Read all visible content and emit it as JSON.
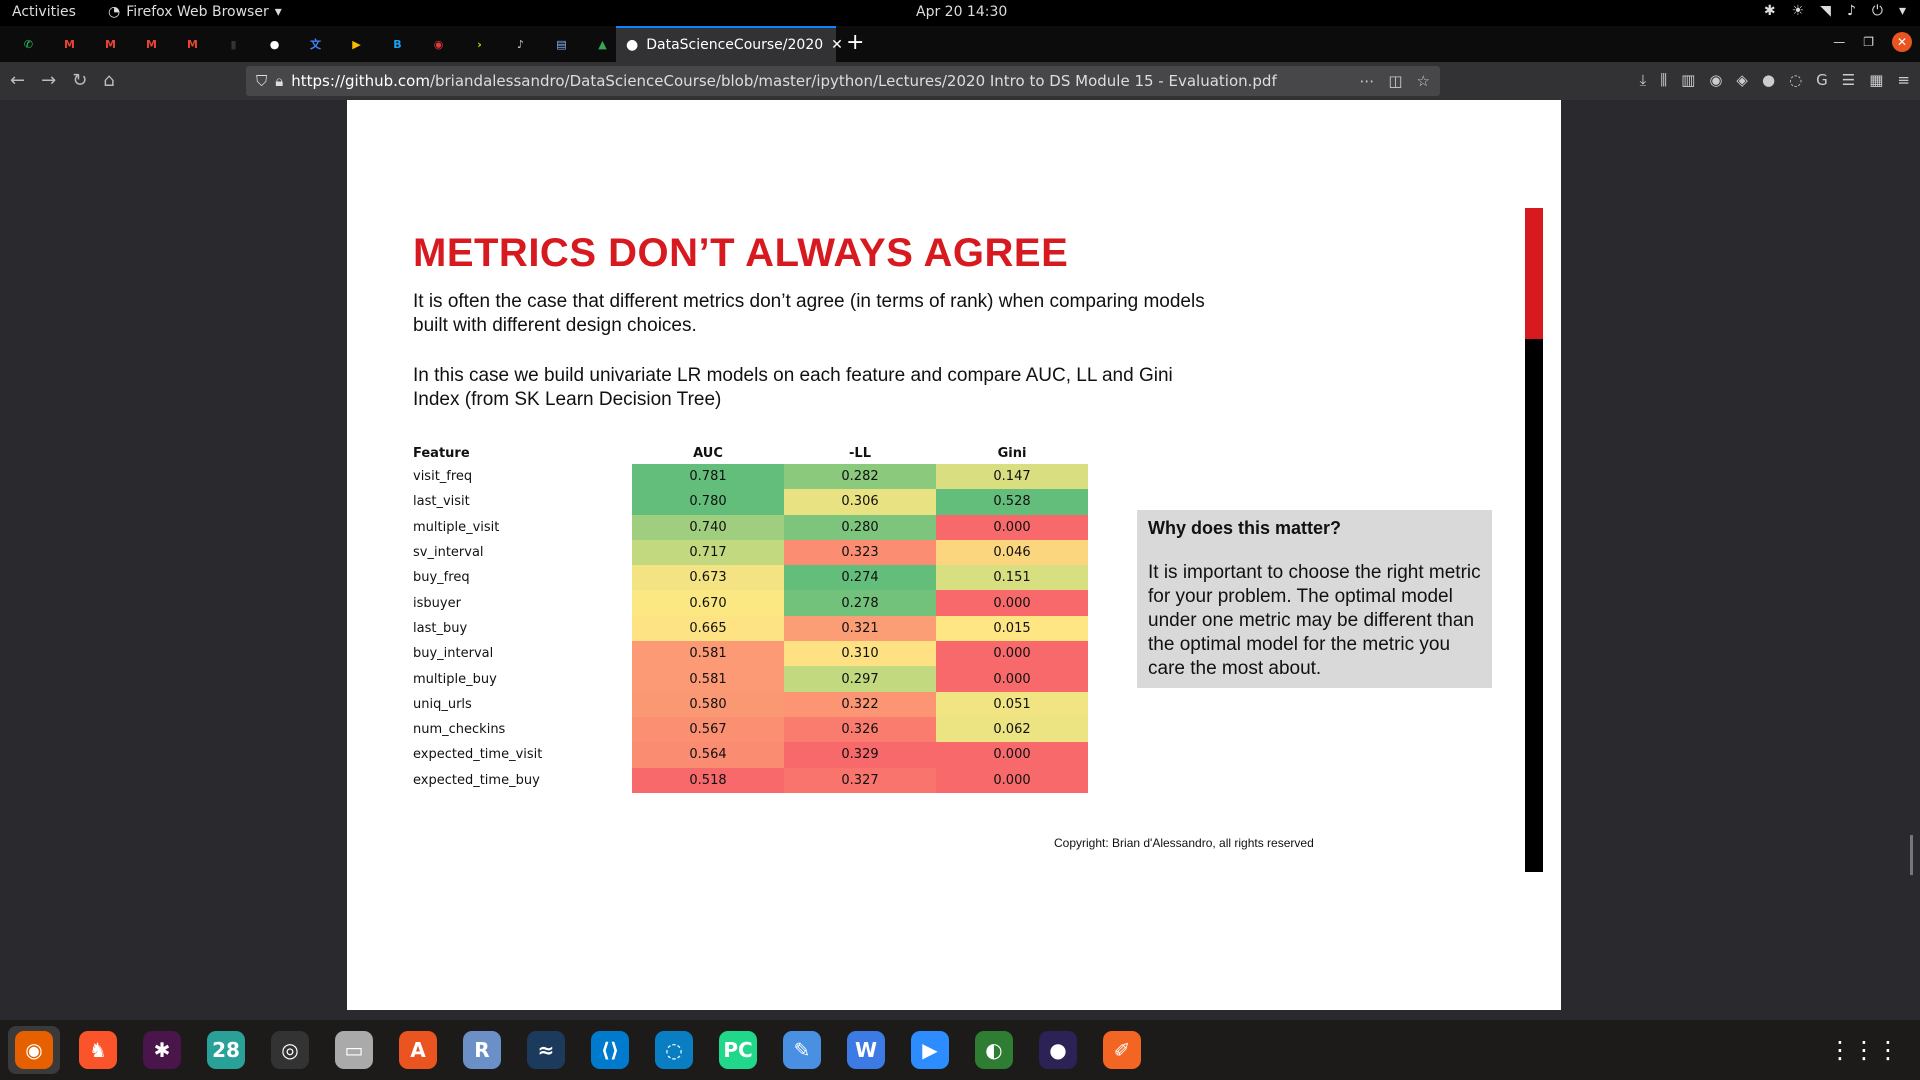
{
  "system": {
    "activities": "Activities",
    "app_name": "Firefox Web Browser",
    "clock": "Apr 20  14:30"
  },
  "browser": {
    "active_tab_title": "DataScienceCourse/2020",
    "url_domain": "https://github.com",
    "url_path": "/briandalessandro/DataScienceCourse/blob/master/ipython/Lectures/2020 Intro to DS Module 15 - Evaluation.pdf",
    "pinned_tabs": [
      {
        "icon": "whatsapp-icon",
        "glyph": "✆",
        "color": "#25d366"
      },
      {
        "icon": "gmail-icon",
        "glyph": "M",
        "color": "#ea4335"
      },
      {
        "icon": "gmail-icon",
        "glyph": "M",
        "color": "#ea4335"
      },
      {
        "icon": "gmail-icon",
        "glyph": "M",
        "color": "#ea4335"
      },
      {
        "icon": "gmail-icon",
        "glyph": "M",
        "color": "#ea4335"
      },
      {
        "icon": "bookmark-icon",
        "glyph": "▮",
        "color": "#333"
      },
      {
        "icon": "github-icon",
        "glyph": "●",
        "color": "#fff"
      },
      {
        "icon": "translate-icon",
        "glyph": "文",
        "color": "#4285f4"
      },
      {
        "icon": "play-icon",
        "glyph": "▶",
        "color": "#fbbc04"
      },
      {
        "icon": "b-icon",
        "glyph": "B",
        "color": "#1da1f2"
      },
      {
        "icon": "record-icon",
        "glyph": "◉",
        "color": "#e53935"
      },
      {
        "icon": "arrow-icon",
        "glyph": "›",
        "color": "#c6e000"
      },
      {
        "icon": "audio-icon",
        "glyph": "♪",
        "color": "#ccc"
      },
      {
        "icon": "doc-icon",
        "glyph": "▤",
        "color": "#8ab4f8"
      },
      {
        "icon": "drive-icon",
        "glyph": "▲",
        "color": "#34a853"
      }
    ]
  },
  "slide": {
    "title": "METRICS DON’T ALWAYS AGREE",
    "paragraph1": "It is often the case that different metrics don’t agree (in terms of rank) when comparing models built with different design choices.",
    "paragraph2": "In this case we build univariate LR models on each feature and compare AUC, LL and Gini Index (from SK Learn Decision Tree)",
    "table": {
      "headers": [
        "Feature",
        "AUC",
        "-LL",
        "Gini"
      ],
      "rows": [
        {
          "feature": "visit_freq",
          "auc": "0.781",
          "ll": "0.282",
          "gini": "0.147",
          "colors": [
            "#63be7b",
            "#8bc97c",
            "#d9df81"
          ]
        },
        {
          "feature": "last_visit",
          "auc": "0.780",
          "ll": "0.306",
          "gini": "0.528",
          "colors": [
            "#64be7b",
            "#e9e282",
            "#63be7b"
          ]
        },
        {
          "feature": "multiple_visit",
          "auc": "0.740",
          "ll": "0.280",
          "gini": "0.000",
          "colors": [
            "#9fcf7e",
            "#7dc57c",
            "#f8696b"
          ]
        },
        {
          "feature": "sv_interval",
          "auc": "0.717",
          "ll": "0.323",
          "gini": "0.046",
          "colors": [
            "#c3d980",
            "#fa8d72",
            "#fbd67f"
          ]
        },
        {
          "feature": "buy_freq",
          "auc": "0.673",
          "ll": "0.274",
          "gini": "0.151",
          "colors": [
            "#f4e383",
            "#63be7b",
            "#d8df81"
          ]
        },
        {
          "feature": "isbuyer",
          "auc": "0.670",
          "ll": "0.278",
          "gini": "0.000",
          "colors": [
            "#fce883",
            "#73c27c",
            "#f8696b"
          ]
        },
        {
          "feature": "last_buy",
          "auc": "0.665",
          "ll": "0.321",
          "gini": "0.015",
          "colors": [
            "#fde383",
            "#fb9d75",
            "#fde683"
          ]
        },
        {
          "feature": "buy_interval",
          "auc": "0.581",
          "ll": "0.310",
          "gini": "0.000",
          "colors": [
            "#fb9a74",
            "#fde182",
            "#f8696b"
          ]
        },
        {
          "feature": "multiple_buy",
          "auc": "0.581",
          "ll": "0.297",
          "gini": "0.000",
          "colors": [
            "#fb9a74",
            "#c3d980",
            "#f8696b"
          ]
        },
        {
          "feature": "uniq_urls",
          "auc": "0.580",
          "ll": "0.322",
          "gini": "0.051",
          "colors": [
            "#fb9874",
            "#fb9574",
            "#f0e483"
          ]
        },
        {
          "feature": "num_checkins",
          "auc": "0.567",
          "ll": "0.326",
          "gini": "0.062",
          "colors": [
            "#fa8f72",
            "#f97c6f",
            "#ece383"
          ]
        },
        {
          "feature": "expected_time_visit",
          "auc": "0.564",
          "ll": "0.329",
          "gini": "0.000",
          "colors": [
            "#fa8c72",
            "#f8696b",
            "#f8696b"
          ]
        },
        {
          "feature": "expected_time_buy",
          "auc": "0.518",
          "ll": "0.327",
          "gini": "0.000",
          "colors": [
            "#f8696b",
            "#f9746d",
            "#f8696b"
          ]
        }
      ]
    },
    "callout_title": "Why does this matter?",
    "callout_body": "It is important to choose the right metric for your problem. The optimal model under one metric may be different than the optimal model for the metric you care the most about.",
    "copyright": "Copyright:  Brian d'Alessandro,  all rights reserved",
    "accent_color": "#d71920"
  },
  "dock": [
    {
      "name": "firefox",
      "glyph": "◉",
      "bg": "#e66000",
      "active": true
    },
    {
      "name": "brave",
      "glyph": "♞",
      "bg": "#fb542b"
    },
    {
      "name": "slack",
      "glyph": "✱",
      "bg": "#4a154b"
    },
    {
      "name": "calendar",
      "glyph": "28",
      "bg": "#2aa198"
    },
    {
      "name": "camera",
      "glyph": "◎",
      "bg": "#333"
    },
    {
      "name": "files",
      "glyph": "▭",
      "bg": "#aaa"
    },
    {
      "name": "software",
      "glyph": "A",
      "bg": "#e95420"
    },
    {
      "name": "r",
      "glyph": "R",
      "bg": "#6b8fc7"
    },
    {
      "name": "mysql",
      "glyph": "≈",
      "bg": "#1b3a5c"
    },
    {
      "name": "vscode",
      "glyph": "⟨⟩",
      "bg": "#007acc"
    },
    {
      "name": "ubuntu",
      "glyph": "◌",
      "bg": "#0a7ec2"
    },
    {
      "name": "pycharm",
      "glyph": "PC",
      "bg": "#21d789"
    },
    {
      "name": "notes",
      "glyph": "✎",
      "bg": "#4a90e2"
    },
    {
      "name": "wps",
      "glyph": "W",
      "bg": "#3b7be3"
    },
    {
      "name": "zoom",
      "glyph": "▶",
      "bg": "#2d8cff"
    },
    {
      "name": "globe",
      "glyph": "◐",
      "bg": "#2e7d32"
    },
    {
      "name": "eclipse",
      "glyph": "●",
      "bg": "#2c2255"
    },
    {
      "name": "paw",
      "glyph": "✐",
      "bg": "#f26522"
    }
  ]
}
